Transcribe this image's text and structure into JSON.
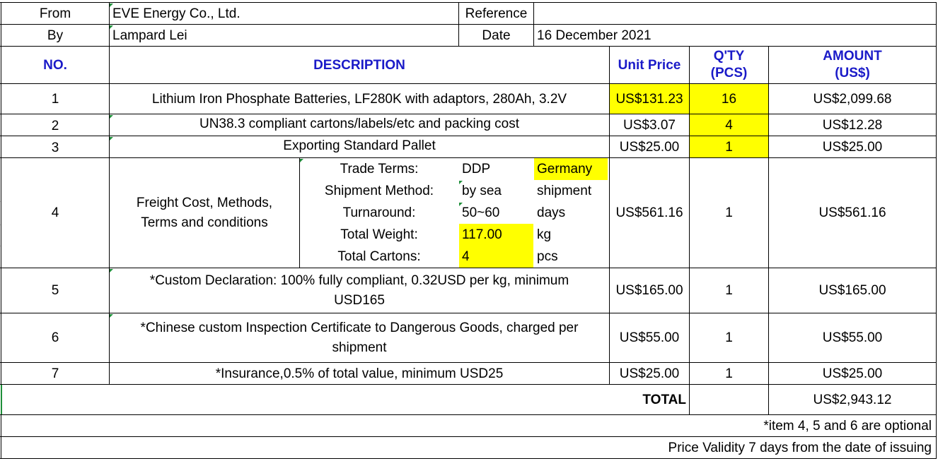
{
  "header": {
    "from_label": "From",
    "from_value": "EVE Energy Co., Ltd.",
    "reference_label": "Reference",
    "reference_value": "",
    "by_label": "By",
    "by_value": "Lampard Lei",
    "date_label": "Date",
    "date_value": "16 December 2021"
  },
  "columns": {
    "no": "NO.",
    "description": "DESCRIPTION",
    "unit_price": "Unit Price",
    "qty_line1": "Q'TY",
    "qty_line2": "(PCS)",
    "amount_line1": "AMOUNT",
    "amount_line2": "(US$)"
  },
  "items": [
    {
      "no": "1",
      "description": "Lithium Iron Phosphate Batteries, LF280K with adaptors, 280Ah, 3.2V",
      "unit_price": "US$131.23",
      "qty": "16",
      "amount": "US$2,099.68"
    },
    {
      "no": "2",
      "description": "UN38.3 compliant cartons/labels/etc and packing cost",
      "unit_price": "US$3.07",
      "qty": "4",
      "amount": "US$12.28"
    },
    {
      "no": "3",
      "description": "Exporting Standard Pallet",
      "unit_price": "US$25.00",
      "qty": "1",
      "amount": "US$25.00"
    },
    {
      "no": "4",
      "description_line1": "Freight Cost, Methods,",
      "description_line2": "Terms and conditions",
      "unit_price": "US$561.16",
      "qty": "1",
      "amount": "US$561.16"
    },
    {
      "no": "5",
      "description_line1": "*Custom Declaration: 100% fully compliant, 0.32USD per kg, minimum",
      "description_line2": "USD165",
      "unit_price": "US$165.00",
      "qty": "1",
      "amount": "US$165.00"
    },
    {
      "no": "6",
      "description_line1": "*Chinese custom Inspection Certificate to Dangerous Goods, charged per",
      "description_line2": "shipment",
      "unit_price": "US$55.00",
      "qty": "1",
      "amount": "US$55.00"
    },
    {
      "no": "7",
      "description": "*Insurance,0.5% of total value, minimum USD25",
      "unit_price": "US$25.00",
      "qty": "1",
      "amount": "US$25.00"
    }
  ],
  "freight": [
    {
      "label": "Trade Terms:",
      "value": "DDP",
      "extra": "Germany"
    },
    {
      "label": "Shipment Method:",
      "value": "by sea",
      "extra": "shipment"
    },
    {
      "label": "Turnaround:",
      "value": "50~60",
      "extra": "days"
    },
    {
      "label": "Total Weight:",
      "value": "117.00",
      "extra": "kg"
    },
    {
      "label": "Total Cartons:",
      "value": "4",
      "extra": "pcs"
    }
  ],
  "total": {
    "label": "TOTAL",
    "value": "US$2,943.12"
  },
  "notes": {
    "optional": "*item 4, 5 and 6 are optional",
    "validity": "Price Validity 7 days from the date of issuing"
  },
  "colors": {
    "header_text": "#1a1ac8",
    "highlight": "#ffff00"
  }
}
